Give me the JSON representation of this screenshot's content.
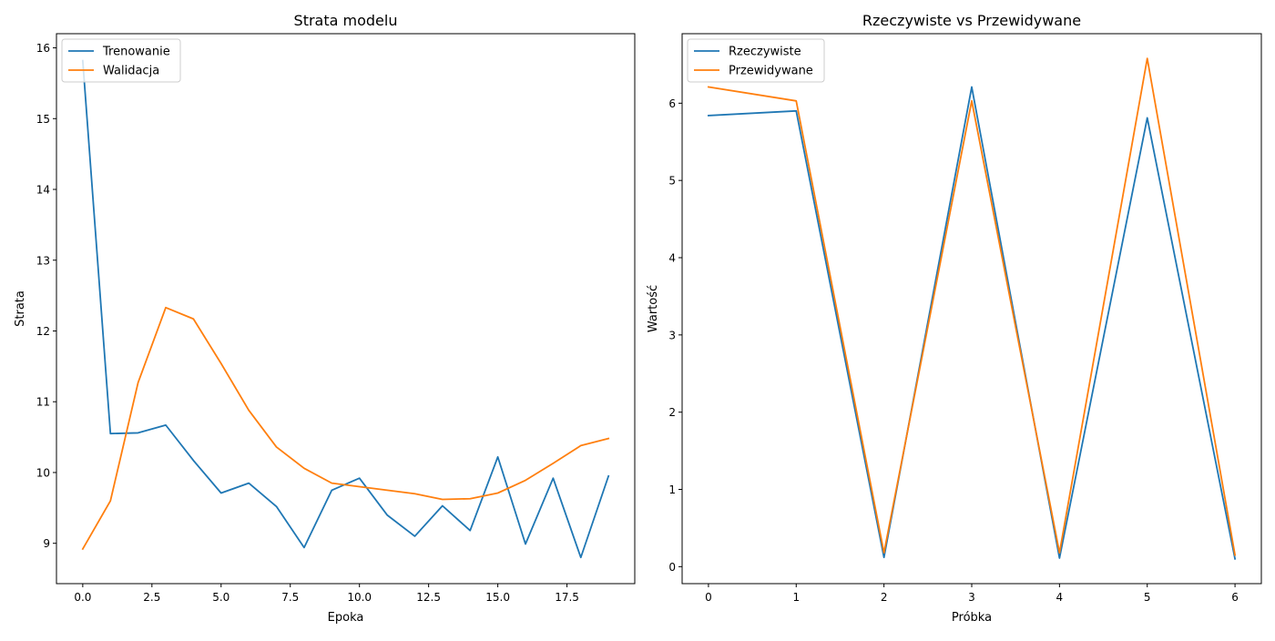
{
  "chart_data": [
    {
      "type": "line",
      "title": "Strata modelu",
      "xlabel": "Epoka",
      "ylabel": "Strata",
      "xlim": [
        -0.95,
        19.95
      ],
      "ylim": [
        8.43,
        16.2
      ],
      "xticks": [
        0,
        2.5,
        5,
        7.5,
        10,
        12.5,
        15,
        17.5
      ],
      "xtick_labels": [
        "0.0",
        "2.5",
        "5.0",
        "7.5",
        "10.0",
        "12.5",
        "15.0",
        "17.5"
      ],
      "yticks": [
        9,
        10,
        11,
        12,
        13,
        14,
        15,
        16
      ],
      "ytick_labels": [
        "9",
        "10",
        "11",
        "12",
        "13",
        "14",
        "15",
        "16"
      ],
      "legend_position": "top-left",
      "x": [
        0,
        1,
        2,
        3,
        4,
        5,
        6,
        7,
        8,
        9,
        10,
        11,
        12,
        13,
        14,
        15,
        16,
        17,
        18,
        19
      ],
      "series": [
        {
          "name": "Trenowanie",
          "color": "#1f77b4",
          "values": [
            15.82,
            10.55,
            10.56,
            10.67,
            10.17,
            9.71,
            9.85,
            9.52,
            8.94,
            9.75,
            9.92,
            9.4,
            9.1,
            9.53,
            9.18,
            10.22,
            8.99,
            9.92,
            8.8,
            9.95
          ]
        },
        {
          "name": "Walidacja",
          "color": "#ff7f0e",
          "values": [
            8.92,
            9.6,
            11.27,
            12.33,
            12.17,
            11.54,
            10.88,
            10.36,
            10.06,
            9.85,
            9.8,
            9.75,
            9.7,
            9.62,
            9.63,
            9.71,
            9.89,
            10.13,
            10.38,
            10.48
          ]
        }
      ]
    },
    {
      "type": "line",
      "title": "Rzeczywiste vs Przewidywane",
      "xlabel": "Próbka",
      "ylabel": "Wartość",
      "xlim": [
        -0.3,
        6.3
      ],
      "ylim": [
        -0.22,
        6.9
      ],
      "xticks": [
        0,
        1,
        2,
        3,
        4,
        5,
        6
      ],
      "xtick_labels": [
        "0",
        "1",
        "2",
        "3",
        "4",
        "5",
        "6"
      ],
      "yticks": [
        0,
        1,
        2,
        3,
        4,
        5,
        6
      ],
      "ytick_labels": [
        "0",
        "1",
        "2",
        "3",
        "4",
        "5",
        "6"
      ],
      "legend_position": "top-left",
      "x": [
        0,
        1,
        2,
        3,
        4,
        5,
        6
      ],
      "series": [
        {
          "name": "Rzeczywiste",
          "color": "#1f77b4",
          "values": [
            5.84,
            5.9,
            0.12,
            6.21,
            0.11,
            5.81,
            0.1
          ]
        },
        {
          "name": "Przewidywane",
          "color": "#ff7f0e",
          "values": [
            6.21,
            6.03,
            0.18,
            6.03,
            0.18,
            6.58,
            0.15
          ]
        }
      ]
    }
  ]
}
